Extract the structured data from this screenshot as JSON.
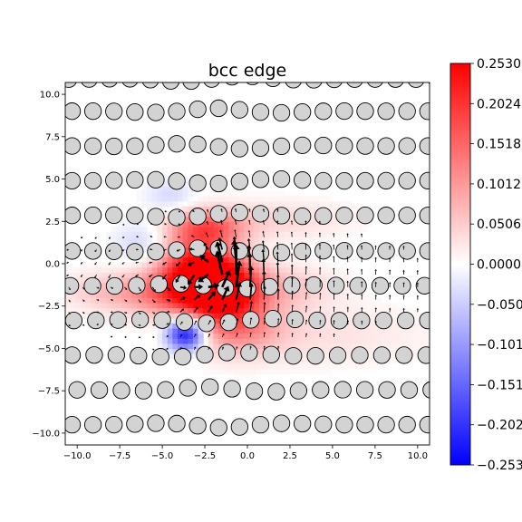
{
  "chart_data": {
    "type": "heatmap",
    "title": "bcc edge",
    "xlabel": "",
    "ylabel": "",
    "xlim": [
      -10.7,
      10.7
    ],
    "ylim": [
      -10.7,
      10.7
    ],
    "x_ticks": [
      -10.0,
      -7.5,
      -5.0,
      -2.5,
      0.0,
      2.5,
      5.0,
      7.5,
      10.0
    ],
    "x_tick_labels": [
      "−10.0",
      "−7.5",
      "−5.0",
      "−2.5",
      "0.0",
      "2.5",
      "5.0",
      "7.5",
      "10.0"
    ],
    "y_ticks": [
      10.0,
      7.5,
      5.0,
      2.5,
      0.0,
      -2.5,
      -5.0,
      -7.5,
      -10.0
    ],
    "y_tick_labels": [
      "10.0",
      "7.5",
      "5.0",
      "2.5",
      "0.0",
      "−2.5",
      "−5.0",
      "−7.5",
      "−10.0"
    ],
    "colorbar": {
      "colormap": "bwr",
      "min": -0.253,
      "max": 0.253,
      "ticks": [
        0.253,
        0.2024,
        0.1518,
        0.1012,
        0.0506,
        0.0,
        -0.0506,
        -0.1012,
        -0.1518,
        -0.2024,
        -0.253
      ],
      "tick_labels": [
        "0.2530",
        "0.2024",
        "0.1518",
        "0.1012",
        "0.0506",
        "0.0000",
        "−0.050",
        "−0.101",
        "−0.151",
        "−0.202",
        "−0.253"
      ]
    },
    "field_blobs": [
      {
        "x": -3.0,
        "y": -0.5,
        "sx": 1.6,
        "sy": 1.5,
        "value": 0.253
      },
      {
        "x": -1.4,
        "y": -1.3,
        "sx": 1.4,
        "sy": 1.2,
        "value": 0.2
      },
      {
        "x": -2.4,
        "y": 2.2,
        "sx": 1.5,
        "sy": 0.7,
        "value": 0.13
      },
      {
        "x": -0.6,
        "y": -3.5,
        "sx": 1.8,
        "sy": 1.2,
        "value": 0.12
      },
      {
        "x": -4.6,
        "y": -1.8,
        "sx": 2.2,
        "sy": 0.9,
        "value": 0.09
      },
      {
        "x": 1.2,
        "y": -1.4,
        "sx": 2.5,
        "sy": 0.9,
        "value": 0.07
      },
      {
        "x": -8.0,
        "y": -1.6,
        "sx": 2.2,
        "sy": 0.8,
        "value": 0.05
      },
      {
        "x": 1.5,
        "y": 2.6,
        "sx": 3.0,
        "sy": 0.8,
        "value": 0.04
      },
      {
        "x": 4.0,
        "y": -4.2,
        "sx": 4.5,
        "sy": 1.2,
        "value": 0.03
      },
      {
        "x": -3.6,
        "y": -4.1,
        "sx": 0.8,
        "sy": 0.7,
        "value": -0.253
      },
      {
        "x": -6.0,
        "y": 1.2,
        "sx": 1.2,
        "sy": 0.9,
        "value": -0.05
      },
      {
        "x": -4.5,
        "y": 4.0,
        "sx": 1.0,
        "sy": 0.7,
        "value": -0.04
      }
    ],
    "atom_rows": [
      {
        "y": 10.9,
        "x_start": -10.5,
        "spacing": 1.2,
        "count": 19
      },
      {
        "y": 9.0,
        "x_start": -10.3,
        "spacing": 1.23,
        "count": 18
      },
      {
        "y": 6.95,
        "x_start": -10.3,
        "spacing": 1.23,
        "count": 18
      },
      {
        "y": 4.9,
        "x_start": -10.3,
        "spacing": 1.23,
        "count": 18
      },
      {
        "y": 2.85,
        "x_start": -10.3,
        "spacing": 1.23,
        "count": 18
      },
      {
        "y": 0.75,
        "x_start": -10.3,
        "spacing": 1.23,
        "count": 18
      },
      {
        "y": -1.3,
        "x_start": -10.4,
        "spacing": 1.3,
        "count": 17
      },
      {
        "y": -3.35,
        "x_start": -10.2,
        "spacing": 1.3,
        "count": 17
      },
      {
        "y": -5.4,
        "x_start": -10.3,
        "spacing": 1.3,
        "count": 17
      },
      {
        "y": -7.45,
        "x_start": -10.0,
        "spacing": 1.3,
        "count": 17
      },
      {
        "y": -9.5,
        "x_start": -10.3,
        "spacing": 1.23,
        "count": 18
      }
    ],
    "vector_field": {
      "core_x": -1.5,
      "core_y": -0.8,
      "x_range": [
        -10.5,
        10.5
      ],
      "y_range": [
        -9.5,
        9.5
      ],
      "grid_step": 0.82
    }
  }
}
